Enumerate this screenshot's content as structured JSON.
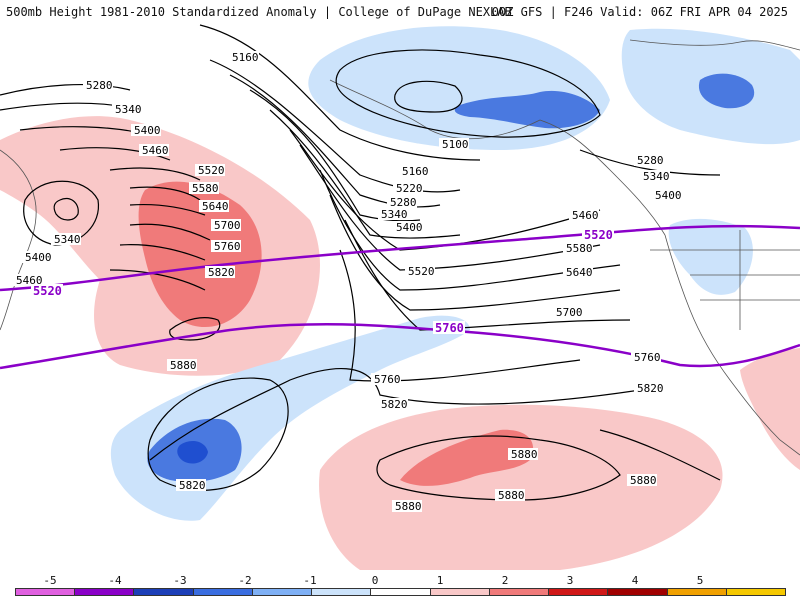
{
  "header": {
    "title": "500mb Height 1981-2010 Standardized Anomaly | College of DuPage NEXLAB",
    "run_info": "00Z GFS | F246 Valid: 06Z FRI APR 04 2025"
  },
  "colors": {
    "contour": "#000000",
    "highlight_contour": "#8a00c8",
    "neg1": "#cce3fb",
    "neg2": "#4a79e0",
    "neg3": "#1f4fd0",
    "pos1": "#f9c8c8",
    "pos2": "#f07a7a",
    "coast": "#555555"
  },
  "contour_labels": [
    {
      "text": "5160"
    },
    {
      "text": "5280"
    },
    {
      "text": "5340"
    },
    {
      "text": "5400"
    },
    {
      "text": "5460"
    },
    {
      "text": "5520"
    },
    {
      "text": "5580"
    },
    {
      "text": "5640"
    },
    {
      "text": "5700"
    },
    {
      "text": "5760"
    },
    {
      "text": "5820"
    },
    {
      "text": "5880"
    },
    {
      "text": "5340"
    },
    {
      "text": "5400"
    },
    {
      "text": "5460"
    },
    {
      "text": "5100"
    },
    {
      "text": "5160"
    },
    {
      "text": "5220"
    },
    {
      "text": "5280"
    },
    {
      "text": "5340"
    },
    {
      "text": "5400"
    },
    {
      "text": "5520"
    },
    {
      "text": "5280"
    },
    {
      "text": "5340"
    },
    {
      "text": "5400"
    },
    {
      "text": "5460"
    },
    {
      "text": "5580"
    },
    {
      "text": "5640"
    },
    {
      "text": "5700"
    },
    {
      "text": "5760"
    },
    {
      "text": "5760"
    },
    {
      "text": "5820"
    },
    {
      "text": "5820"
    },
    {
      "text": "5820"
    },
    {
      "text": "5880"
    },
    {
      "text": "5880"
    },
    {
      "text": "5880"
    },
    {
      "text": "5880"
    }
  ],
  "highlight_labels": [
    {
      "text": "5520"
    },
    {
      "text": "5520"
    },
    {
      "text": "5760"
    }
  ],
  "colorbar": {
    "ticks": [
      "-5",
      "-4",
      "-3",
      "-2",
      "-1",
      "0",
      "1",
      "2",
      "3",
      "4",
      "5"
    ],
    "bins": [
      {
        "color": "#e060e0"
      },
      {
        "color": "#8a00c8"
      },
      {
        "color": "#1d3fb8"
      },
      {
        "color": "#3a6de0"
      },
      {
        "color": "#7fb0f5"
      },
      {
        "color": "#cce3fb"
      },
      {
        "color": "#ffffff"
      },
      {
        "color": "#f9c8c8"
      },
      {
        "color": "#f07a7a"
      },
      {
        "color": "#d01818"
      },
      {
        "color": "#a00000"
      },
      {
        "color": "#f0a000"
      },
      {
        "color": "#f5c800"
      }
    ]
  }
}
